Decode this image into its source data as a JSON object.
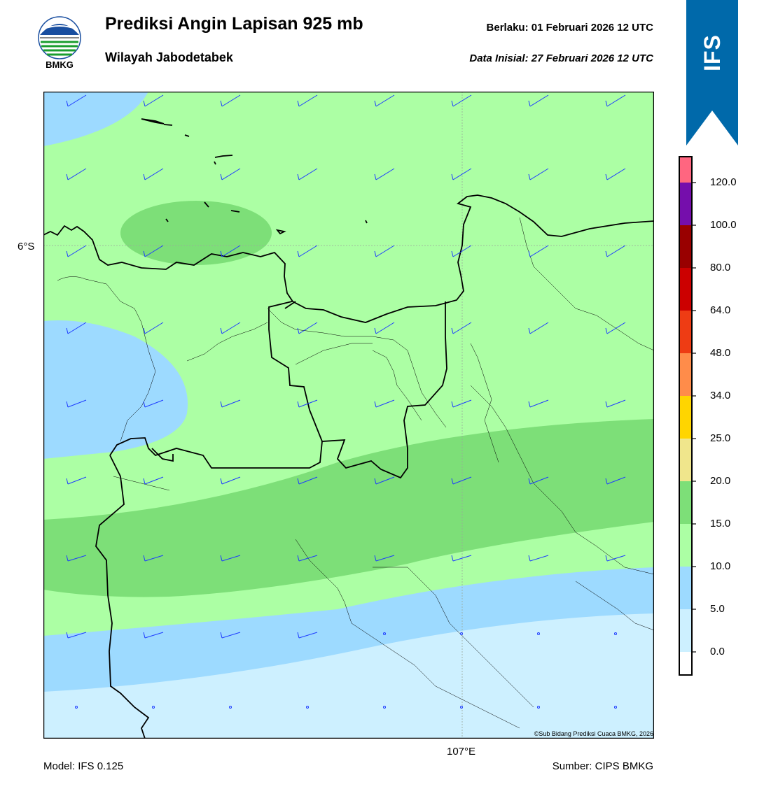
{
  "header": {
    "title": "Prediksi Angin Lapisan 925 mb",
    "subtitle": "Wilayah Jabodetabek",
    "valid": "Berlaku:  01 Februari 2026 12 UTC",
    "init": "Data Inisial:  27 Februari 2026 12 UTC",
    "logo_text": "BMKG"
  },
  "ribbon": {
    "label": "IFS",
    "color": "#0069aa"
  },
  "map": {
    "lat_label": "6°S",
    "lon_label": "107°E",
    "copyright": "©Sub Bidang Prediksi Cuaca BMKG, 2026",
    "contour_colors": {
      "0-5": "#cdf0ff",
      "5-10": "#9ddaff",
      "10-15": "#acffa4",
      "15-20": "#7ddf78"
    }
  },
  "colorbar": {
    "ticks": [
      "0.0",
      "5.0",
      "10.0",
      "15.0",
      "20.0",
      "25.0",
      "34.0",
      "48.0",
      "64.0",
      "80.0",
      "100.0",
      "120.0"
    ],
    "colors": [
      "#ffffff",
      "#cdf0ff",
      "#9ddaff",
      "#acffa4",
      "#7ddf78",
      "#f0e68c",
      "#ffd500",
      "#ff8c4a",
      "#ee3c14",
      "#cc0000",
      "#990000",
      "#750eac",
      "#ff6680"
    ]
  },
  "footer": {
    "model": "Model: IFS 0.125",
    "source": "Sumber: CIPS BMKG"
  }
}
